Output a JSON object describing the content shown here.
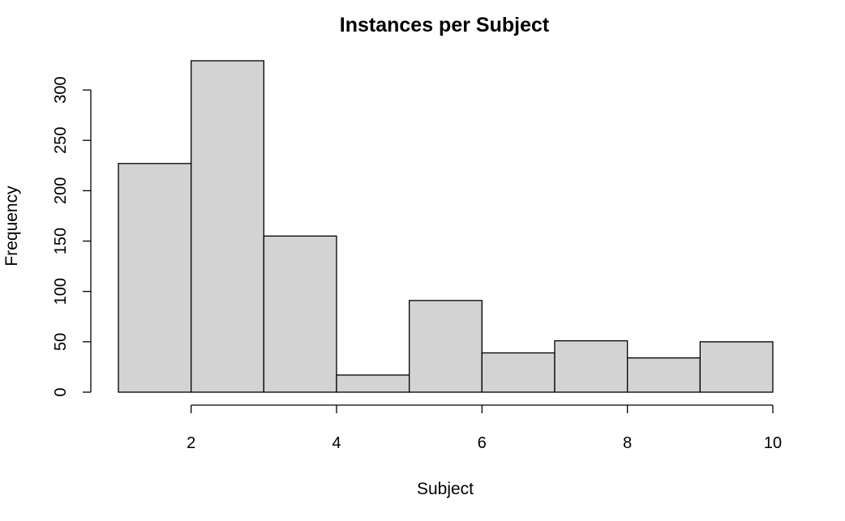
{
  "chart_data": {
    "type": "bar",
    "title": "Instances per Subject",
    "xlabel": "Subject",
    "ylabel": "Frequency",
    "bins": [
      {
        "from": 1,
        "to": 2,
        "count": 227
      },
      {
        "from": 2,
        "to": 3,
        "count": 329
      },
      {
        "from": 3,
        "to": 4,
        "count": 155
      },
      {
        "from": 4,
        "to": 5,
        "count": 17
      },
      {
        "from": 5,
        "to": 6,
        "count": 91
      },
      {
        "from": 6,
        "to": 7,
        "count": 39
      },
      {
        "from": 7,
        "to": 8,
        "count": 51
      },
      {
        "from": 8,
        "to": 9,
        "count": 34
      },
      {
        "from": 9,
        "to": 10,
        "count": 50
      }
    ],
    "xticks": [
      2,
      4,
      6,
      8,
      10
    ],
    "yticks": [
      0,
      50,
      100,
      150,
      200,
      250,
      300
    ],
    "xlim": [
      1,
      10
    ],
    "ylim": [
      0,
      329
    ],
    "grid": false,
    "colors": {
      "bar_fill": "#d3d3d3",
      "bar_stroke": "#000000",
      "axis": "#000000"
    }
  }
}
